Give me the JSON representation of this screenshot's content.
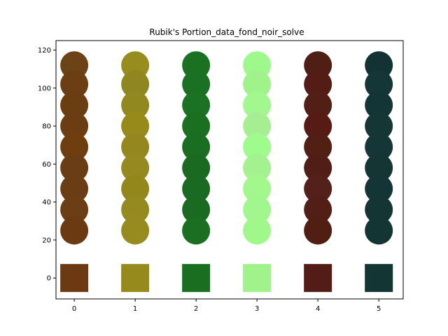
{
  "chart_data": {
    "type": "scatter",
    "title": "Rubik's Portion_data_fond_noir_solve",
    "xlabel": "",
    "ylabel": "",
    "xlim": [
      -0.3,
      5.4
    ],
    "ylim": [
      -11,
      125
    ],
    "x_ticks": [
      0,
      1,
      2,
      3,
      4,
      5
    ],
    "y_ticks": [
      0,
      20,
      40,
      60,
      80,
      100,
      120
    ],
    "grid": false,
    "columns": [
      {
        "x": 0,
        "swatch_color": "#6b3a12",
        "points": [
          {
            "y": 112,
            "color": "#6b4316"
          },
          {
            "y": 102,
            "color": "#6b3e14"
          },
          {
            "y": 91,
            "color": "#6b3e12"
          },
          {
            "y": 80,
            "color": "#6c3c12"
          },
          {
            "y": 69,
            "color": "#6f3e0f"
          },
          {
            "y": 58,
            "color": "#6b3d15"
          },
          {
            "y": 47,
            "color": "#6b3d15"
          },
          {
            "y": 36,
            "color": "#6b3e15"
          },
          {
            "y": 25,
            "color": "#6b3a12"
          }
        ]
      },
      {
        "x": 1,
        "swatch_color": "#978a1c",
        "points": [
          {
            "y": 112,
            "color": "#968d1e"
          },
          {
            "y": 102,
            "color": "#8f861f"
          },
          {
            "y": 91,
            "color": "#928820"
          },
          {
            "y": 80,
            "color": "#978a1a"
          },
          {
            "y": 69,
            "color": "#94871f"
          },
          {
            "y": 58,
            "color": "#96891f"
          },
          {
            "y": 47,
            "color": "#93871c"
          },
          {
            "y": 36,
            "color": "#948a20"
          },
          {
            "y": 25,
            "color": "#978b1f"
          }
        ]
      },
      {
        "x": 2,
        "swatch_color": "#1a6e20",
        "points": [
          {
            "y": 112,
            "color": "#1a7121"
          },
          {
            "y": 102,
            "color": "#1a7123"
          },
          {
            "y": 91,
            "color": "#1a7222"
          },
          {
            "y": 80,
            "color": "#1a7020"
          },
          {
            "y": 69,
            "color": "#1a6e21"
          },
          {
            "y": 58,
            "color": "#1a6a22"
          },
          {
            "y": 47,
            "color": "#1a6a23"
          },
          {
            "y": 36,
            "color": "#1a6a22"
          },
          {
            "y": 25,
            "color": "#1a7020"
          }
        ]
      },
      {
        "x": 3,
        "swatch_color": "#a0f28a",
        "points": [
          {
            "y": 112,
            "color": "#9ff88b"
          },
          {
            "y": 102,
            "color": "#9ff38a"
          },
          {
            "y": 91,
            "color": "#a2f88e"
          },
          {
            "y": 80,
            "color": "#a6ee92"
          },
          {
            "y": 69,
            "color": "#9ffb8b"
          },
          {
            "y": 58,
            "color": "#a4f18f"
          },
          {
            "y": 47,
            "color": "#a2f88c"
          },
          {
            "y": 36,
            "color": "#a2f68e"
          },
          {
            "y": 25,
            "color": "#a0f88b"
          }
        ]
      },
      {
        "x": 4,
        "swatch_color": "#541c16",
        "points": [
          {
            "y": 112,
            "color": "#4f1f15"
          },
          {
            "y": 102,
            "color": "#531d16"
          },
          {
            "y": 91,
            "color": "#521f16"
          },
          {
            "y": 80,
            "color": "#561b14"
          },
          {
            "y": 69,
            "color": "#521f14"
          },
          {
            "y": 58,
            "color": "#501e16"
          },
          {
            "y": 47,
            "color": "#54201a"
          },
          {
            "y": 36,
            "color": "#521f16"
          },
          {
            "y": 25,
            "color": "#511e14"
          }
        ]
      },
      {
        "x": 5,
        "swatch_color": "#133533",
        "points": [
          {
            "y": 112,
            "color": "#123233"
          },
          {
            "y": 102,
            "color": "#153636"
          },
          {
            "y": 91,
            "color": "#143535"
          },
          {
            "y": 80,
            "color": "#163636"
          },
          {
            "y": 69,
            "color": "#143636"
          },
          {
            "y": 58,
            "color": "#143534"
          },
          {
            "y": 47,
            "color": "#143535"
          },
          {
            "y": 36,
            "color": "#143534"
          },
          {
            "y": 25,
            "color": "#133534"
          }
        ]
      }
    ]
  }
}
